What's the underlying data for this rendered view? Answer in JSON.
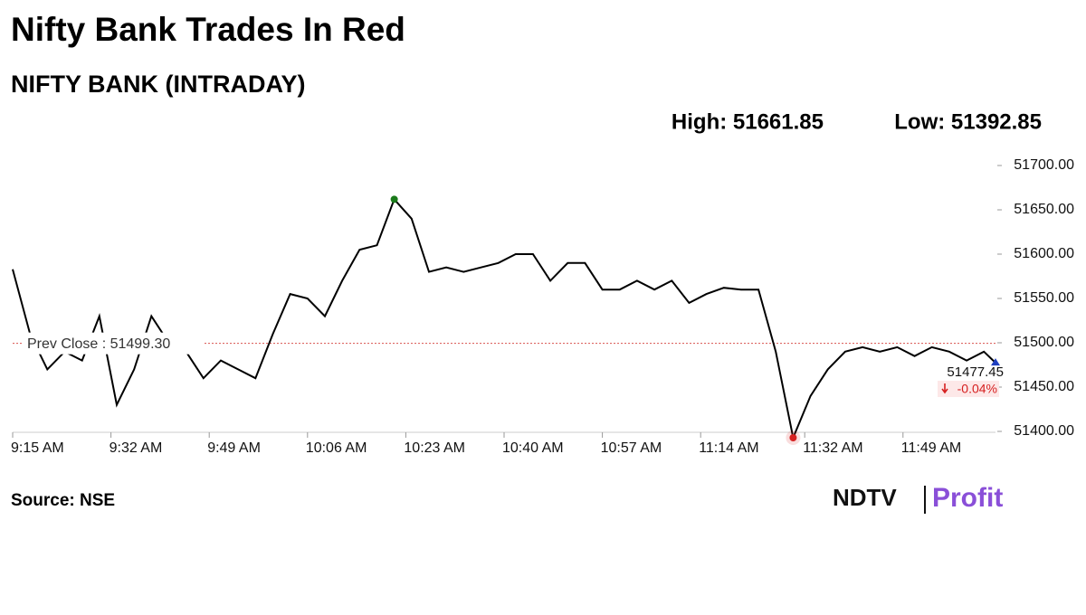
{
  "chart_data": {
    "type": "line",
    "title": "Nifty Bank Trades In Red",
    "subtitle": "NIFTY BANK (INTRADAY)",
    "high_label": "High: 51661.85",
    "low_label": "Low: 51392.85",
    "x": [
      "9:15 AM",
      "9:18 AM",
      "9:21 AM",
      "9:24 AM",
      "9:27 AM",
      "9:30 AM",
      "9:33 AM",
      "9:36 AM",
      "9:39 AM",
      "9:42 AM",
      "9:45 AM",
      "9:48 AM",
      "9:51 AM",
      "9:54 AM",
      "9:57 AM",
      "10:00 AM",
      "10:03 AM",
      "10:06 AM",
      "10:09 AM",
      "10:12 AM",
      "10:15 AM",
      "10:18 AM",
      "10:21 AM",
      "10:24 AM",
      "10:27 AM",
      "10:30 AM",
      "10:33 AM",
      "10:36 AM",
      "10:39 AM",
      "10:42 AM",
      "10:45 AM",
      "10:48 AM",
      "10:51 AM",
      "10:54 AM",
      "10:57 AM",
      "11:00 AM",
      "11:03 AM",
      "11:06 AM",
      "11:09 AM",
      "11:12 AM",
      "11:15 AM",
      "11:18 AM",
      "11:21 AM",
      "11:24 AM",
      "11:27 AM",
      "11:30 AM",
      "11:33 AM",
      "11:36 AM",
      "11:39 AM",
      "11:42 AM",
      "11:45 AM",
      "11:48 AM",
      "11:51 AM",
      "11:54 AM",
      "11:57 AM",
      "12:00 PM",
      "12:03 PM",
      "12:05 PM"
    ],
    "values": [
      51583,
      51510,
      51470,
      51490,
      51480,
      51530,
      51430,
      51470,
      51530,
      51500,
      51490,
      51460,
      51480,
      51470,
      51460,
      51510,
      51555,
      51550,
      51530,
      51570,
      51605,
      51610,
      51661.85,
      51640,
      51580,
      51585,
      51580,
      51585,
      51590,
      51600,
      51600,
      51570,
      51590,
      51590,
      51560,
      51560,
      51570,
      51560,
      51570,
      51545,
      51555,
      51562,
      51560,
      51560,
      51490,
      51392.85,
      51440,
      51470,
      51490,
      51495,
      51490,
      51495,
      51485,
      51495,
      51490,
      51480,
      51490,
      51477.45
    ],
    "color": "#000000",
    "xlim": [
      "9:15 AM",
      "12:05 PM"
    ],
    "xticks": [
      "9:15 AM",
      "9:32 AM",
      "9:49 AM",
      "10:06 AM",
      "10:23 AM",
      "10:40 AM",
      "10:57 AM",
      "11:14 AM",
      "11:32 AM",
      "11:49 AM"
    ],
    "ylim": [
      51400,
      51700
    ],
    "yticks": [
      {
        "value": 51400,
        "label": "51400.00"
      },
      {
        "value": 51450,
        "label": "51450.00"
      },
      {
        "value": 51500,
        "label": "51500.00"
      },
      {
        "value": 51550,
        "label": "51550.00"
      },
      {
        "value": 51600,
        "label": "51600.00"
      },
      {
        "value": 51650,
        "label": "51650.00"
      },
      {
        "value": 51700,
        "label": "51700.00"
      }
    ],
    "reference_line": {
      "value": 51499.3,
      "label": "Prev Close : 51499.30",
      "color": "#d9534f"
    },
    "last_value_label": "51477.45",
    "change_label": "-0.04%",
    "high_color": "#1a7a1a",
    "low_color": "#d62020",
    "last_color": "#1f3fbf",
    "source": "Source: NSE",
    "logo": [
      "NDTV",
      "Profit"
    ]
  }
}
